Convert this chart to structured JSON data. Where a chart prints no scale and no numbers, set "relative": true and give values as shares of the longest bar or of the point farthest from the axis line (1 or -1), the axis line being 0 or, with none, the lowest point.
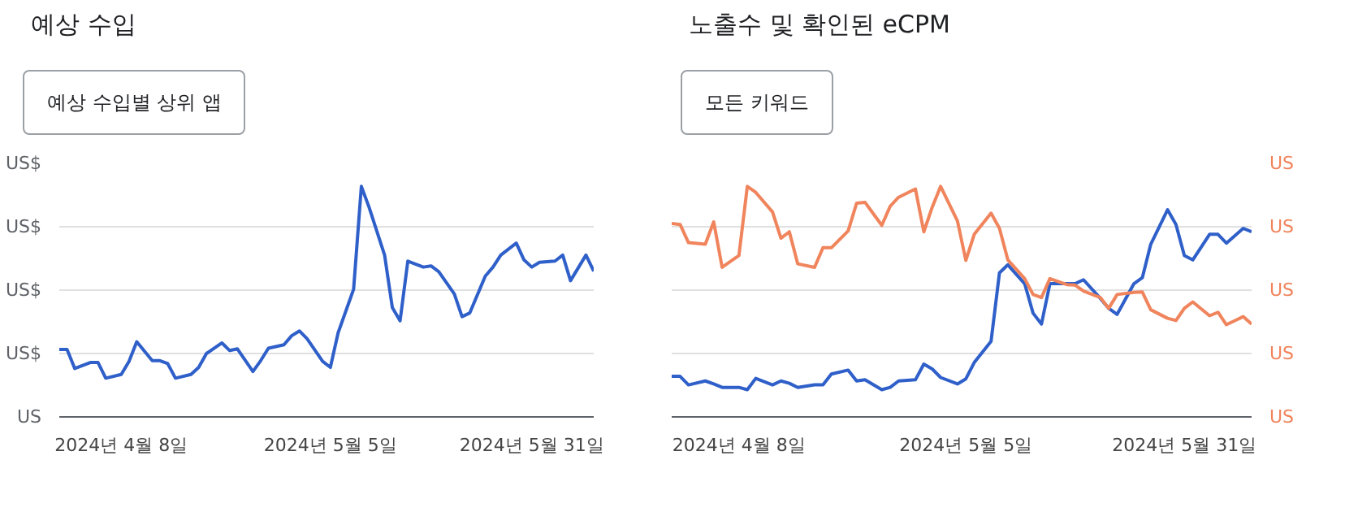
{
  "chart_data": [
    {
      "type": "line",
      "title": "예상 수입",
      "subtitle": "예상 수입별 상위 앱",
      "relative": true,
      "grid": "y",
      "annotations": [
        "US",
        "US$",
        "US$",
        "US$",
        "US$"
      ],
      "x": [
        "2024-03-31",
        "2024-04-01",
        "2024-04-02",
        "2024-04-04",
        "2024-04-05",
        "2024-04-06",
        "2024-04-08",
        "2024-04-09",
        "2024-04-10",
        "2024-04-12",
        "2024-04-13",
        "2024-04-14",
        "2024-04-15",
        "2024-04-17",
        "2024-04-18",
        "2024-04-19",
        "2024-04-21",
        "2024-04-22",
        "2024-04-23",
        "2024-04-25",
        "2024-04-26",
        "2024-04-27",
        "2024-04-29",
        "2024-04-30",
        "2024-05-01",
        "2024-05-02",
        "2024-05-04",
        "2024-05-05",
        "2024-05-06",
        "2024-05-08",
        "2024-05-09",
        "2024-05-10",
        "2024-05-12",
        "2024-05-13",
        "2024-05-14",
        "2024-05-15",
        "2024-05-17",
        "2024-05-18",
        "2024-05-19",
        "2024-05-21",
        "2024-05-22",
        "2024-05-23",
        "2024-05-25",
        "2024-05-26",
        "2024-05-27",
        "2024-05-29",
        "2024-05-30",
        "2024-05-31",
        "2024-06-01",
        "2024-06-03",
        "2024-06-04",
        "2024-06-05",
        "2024-06-07",
        "2024-06-08"
      ],
      "xlim": [
        "2024-03-31",
        "2024-06-08"
      ],
      "xticks": [
        {
          "value": "2024-04-08",
          "label": "2024년 4월 8일"
        },
        {
          "value": "2024-05-05",
          "label": "2024년 5월 5일"
        },
        {
          "value": "2024-05-31",
          "label": "2024년 5월 31일"
        }
      ],
      "series": [
        {
          "color": "#2f5fc9",
          "values": [
            0.293,
            0.293,
            0.21,
            0.236,
            0.236,
            0.168,
            0.184,
            0.241,
            0.326,
            0.244,
            0.244,
            0.231,
            0.168,
            0.184,
            0.215,
            0.275,
            0.321,
            0.288,
            0.295,
            0.197,
            0.244,
            0.298,
            0.313,
            0.352,
            0.373,
            0.339,
            0.241,
            0.215,
            0.365,
            0.554,
            1.0,
            0.909,
            0.702,
            0.474,
            0.417,
            0.676,
            0.65,
            0.655,
            0.63,
            0.534,
            0.435,
            0.451,
            0.611,
            0.65,
            0.702,
            0.754,
            0.681,
            0.65,
            0.671,
            0.676,
            0.702,
            0.591,
            0.702,
            0.632
          ]
        }
      ]
    },
    {
      "type": "line",
      "title": "노출수 및 확인된 eCPM",
      "subtitle": "모든 키워드",
      "relative": true,
      "grid": "y",
      "annotations": [
        "US",
        "US",
        "US",
        "US",
        "US"
      ],
      "x": [
        "2024-03-31",
        "2024-04-01",
        "2024-04-02",
        "2024-04-04",
        "2024-04-05",
        "2024-04-06",
        "2024-04-08",
        "2024-04-09",
        "2024-04-10",
        "2024-04-12",
        "2024-04-13",
        "2024-04-14",
        "2024-04-15",
        "2024-04-17",
        "2024-04-18",
        "2024-04-19",
        "2024-04-21",
        "2024-04-22",
        "2024-04-23",
        "2024-04-25",
        "2024-04-26",
        "2024-04-27",
        "2024-04-29",
        "2024-04-30",
        "2024-05-01",
        "2024-05-02",
        "2024-05-04",
        "2024-05-05",
        "2024-05-06",
        "2024-05-08",
        "2024-05-09",
        "2024-05-10",
        "2024-05-12",
        "2024-05-13",
        "2024-05-14",
        "2024-05-15",
        "2024-05-17",
        "2024-05-18",
        "2024-05-19",
        "2024-05-21",
        "2024-05-22",
        "2024-05-23",
        "2024-05-25",
        "2024-05-26",
        "2024-05-27",
        "2024-05-29",
        "2024-05-30",
        "2024-05-31",
        "2024-06-01",
        "2024-06-03",
        "2024-06-04",
        "2024-06-05",
        "2024-06-07",
        "2024-06-08"
      ],
      "xlim": [
        "2024-03-31",
        "2024-06-08"
      ],
      "xticks": [
        {
          "value": "2024-04-08",
          "label": "2024년 4월 8일"
        },
        {
          "value": "2024-05-05",
          "label": "2024년 5월 5일"
        },
        {
          "value": "2024-05-31",
          "label": "2024년 5월 31일"
        }
      ],
      "series": [
        {
          "color": "#2f5fc9",
          "values": [
            0.176,
            0.176,
            0.139,
            0.156,
            0.143,
            0.128,
            0.128,
            0.118,
            0.167,
            0.139,
            0.156,
            0.146,
            0.128,
            0.139,
            0.139,
            0.186,
            0.203,
            0.156,
            0.161,
            0.118,
            0.128,
            0.156,
            0.161,
            0.229,
            0.208,
            0.171,
            0.143,
            0.165,
            0.236,
            0.328,
            0.625,
            0.66,
            0.578,
            0.45,
            0.403,
            0.578,
            0.578,
            0.578,
            0.595,
            0.514,
            0.471,
            0.445,
            0.578,
            0.604,
            0.749,
            0.899,
            0.835,
            0.7,
            0.681,
            0.792,
            0.792,
            0.754,
            0.818,
            0.803
          ]
        },
        {
          "color": "#f0845c",
          "axis": "y2",
          "values": [
            0.839,
            0.835,
            0.756,
            0.749,
            0.846,
            0.649,
            0.7,
            1.0,
            0.974,
            0.889,
            0.775,
            0.803,
            0.664,
            0.649,
            0.734,
            0.734,
            0.807,
            0.927,
            0.931,
            0.831,
            0.914,
            0.953,
            0.989,
            0.803,
            0.91,
            1.0,
            0.85,
            0.679,
            0.792,
            0.884,
            0.818,
            0.681,
            0.6,
            0.531,
            0.518,
            0.6,
            0.574,
            0.572,
            0.546,
            0.518,
            0.471,
            0.531,
            0.54,
            0.542,
            0.465,
            0.428,
            0.418,
            0.471,
            0.499,
            0.439,
            0.454,
            0.4,
            0.435,
            0.403
          ]
        }
      ]
    }
  ]
}
